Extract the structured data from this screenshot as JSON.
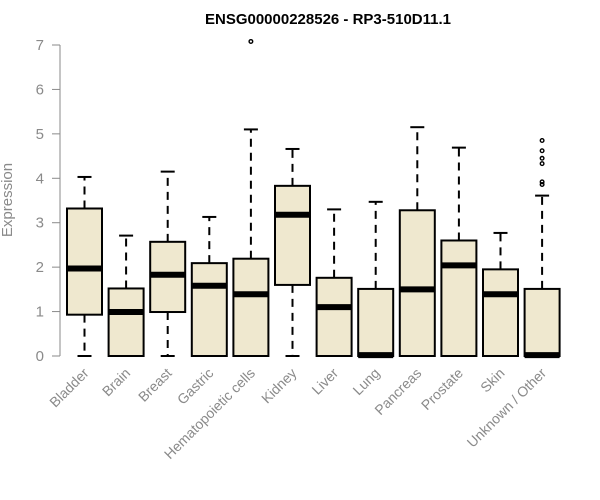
{
  "chart_data": {
    "type": "boxplot",
    "title": "ENSG00000228526 - RP3-510D11.1",
    "ylabel": "Expression",
    "xlabel": "",
    "ylim": [
      0,
      7
    ],
    "yticks": [
      "0",
      "1",
      "2",
      "3",
      "4",
      "5",
      "6",
      "7"
    ],
    "grid": false,
    "colors": {
      "box_fill": "#efe8cf",
      "stroke": "#000000",
      "axis_text": "#8a8a8a"
    },
    "categories": [
      "Bladder",
      "Brain",
      "Breast",
      "Gastric",
      "Hematopoietic cells",
      "Kidney",
      "Liver",
      "Lung",
      "Pancreas",
      "Prostate",
      "Skin",
      "Unknown / Other"
    ],
    "boxes": [
      {
        "min": 0,
        "q1": 0.93,
        "median": 1.97,
        "q3": 3.32,
        "max": 4.03,
        "outliers": []
      },
      {
        "min": 0,
        "q1": 0,
        "median": 0.99,
        "q3": 1.52,
        "max": 2.71,
        "outliers": []
      },
      {
        "min": 0,
        "q1": 0.99,
        "median": 1.83,
        "q3": 2.57,
        "max": 4.15,
        "outliers": []
      },
      {
        "min": 0,
        "q1": 0,
        "median": 1.58,
        "q3": 2.09,
        "max": 3.13,
        "outliers": []
      },
      {
        "min": 0,
        "q1": 0,
        "median": 1.39,
        "q3": 2.19,
        "max": 5.1,
        "outliers": [
          7.08
        ]
      },
      {
        "min": 0,
        "q1": 1.6,
        "median": 3.18,
        "q3": 3.83,
        "max": 4.66,
        "outliers": []
      },
      {
        "min": 0,
        "q1": 0,
        "median": 1.1,
        "q3": 1.76,
        "max": 3.3,
        "outliers": []
      },
      {
        "min": 0,
        "q1": 0,
        "median": 0.02,
        "q3": 1.51,
        "max": 3.47,
        "outliers": []
      },
      {
        "min": 0,
        "q1": 0,
        "median": 1.5,
        "q3": 3.28,
        "max": 5.15,
        "outliers": []
      },
      {
        "min": 0,
        "q1": 0,
        "median": 2.04,
        "q3": 2.6,
        "max": 4.69,
        "outliers": []
      },
      {
        "min": 0,
        "q1": 0,
        "median": 1.39,
        "q3": 1.95,
        "max": 2.77,
        "outliers": []
      },
      {
        "min": 0,
        "q1": 0,
        "median": 0.02,
        "q3": 1.51,
        "max": 3.61,
        "outliers": [
          3.86,
          3.92,
          4.33,
          4.45,
          4.62,
          4.85
        ]
      }
    ]
  }
}
